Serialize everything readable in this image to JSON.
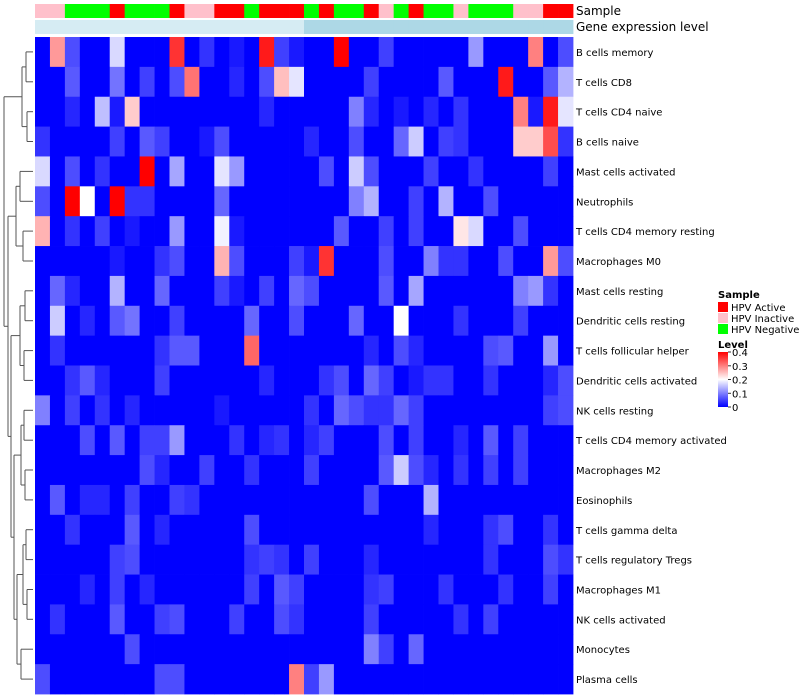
{
  "chart_data": {
    "type": "heatmap",
    "annotation_tracks": [
      "Sample",
      "Gene expression level"
    ],
    "columns": 36,
    "row_labels": [
      "B cells memory",
      "T cells CD8",
      "T cells CD4 naive",
      "B cells naive",
      "Mast cells activated",
      "Neutrophils",
      "T cells CD4 memory resting",
      "Macrophages M0",
      "Mast cells resting",
      "Dendritic cells resting",
      "T cells follicular helper",
      "Dendritic cells activated",
      "NK cells resting",
      "T cells CD4 memory activated",
      "Macrophages M2",
      "Eosinophils",
      "T cells gamma delta",
      "T cells regulatory  Tregs",
      "Macrophages M1",
      "NK cells activated",
      "Monocytes",
      "Plasma cells"
    ],
    "sample_groups": [
      "HPV Inactive",
      "HPV Inactive",
      "HPV Negative",
      "HPV Negative",
      "HPV Negative",
      "HPV Active",
      "HPV Negative",
      "HPV Negative",
      "HPV Negative",
      "HPV Active",
      "HPV Inactive",
      "HPV Inactive",
      "HPV Active",
      "HPV Active",
      "HPV Negative",
      "HPV Active",
      "HPV Active",
      "HPV Active",
      "HPV Negative",
      "HPV Active",
      "HPV Negative",
      "HPV Negative",
      "HPV Active",
      "HPV Inactive",
      "HPV Negative",
      "HPV Active",
      "HPV Negative",
      "HPV Negative",
      "HPV Inactive",
      "HPV Negative",
      "HPV Negative",
      "HPV Negative",
      "HPV Inactive",
      "HPV Inactive",
      "HPV Active",
      "HPV Active"
    ],
    "expression_track": [
      0.25,
      0.25,
      0.25,
      0.25,
      0.25,
      0.25,
      0.25,
      0.25,
      0.25,
      0.25,
      0.25,
      0.25,
      0.25,
      0.25,
      0.25,
      0.25,
      0.25,
      0.25,
      0.5,
      0.5,
      0.5,
      0.5,
      0.5,
      0.5,
      0.5,
      0.5,
      0.5,
      0.5,
      0.5,
      0.5,
      0.5,
      0.5,
      0.5,
      0.5,
      0.5,
      0.5
    ],
    "values": [
      [
        0.0,
        0.28,
        0.06,
        0.0,
        0.0,
        0.17,
        0.0,
        0.0,
        0.0,
        0.36,
        0.0,
        0.04,
        0.0,
        0.02,
        0.0,
        0.38,
        0.05,
        0.02,
        0.0,
        0.0,
        0.4,
        0.0,
        0.0,
        0.05,
        0.0,
        0.0,
        0.0,
        0.0,
        0.0,
        0.12,
        0.0,
        0.0,
        0.0,
        0.3,
        0.0,
        0.06
      ],
      [
        0.0,
        0.0,
        0.07,
        0.0,
        0.0,
        0.09,
        0.0,
        0.05,
        0.0,
        0.06,
        0.31,
        0.0,
        0.0,
        0.03,
        0.0,
        0.06,
        0.25,
        0.18,
        0.0,
        0.0,
        0.0,
        0.0,
        0.05,
        0.0,
        0.0,
        0.0,
        0.0,
        0.07,
        0.0,
        0.0,
        0.0,
        0.38,
        0.0,
        0.0,
        0.07,
        0.14
      ],
      [
        0.0,
        0.0,
        0.03,
        0.0,
        0.15,
        0.02,
        0.24,
        0.0,
        0.0,
        0.0,
        0.0,
        0.0,
        0.0,
        0.0,
        0.0,
        0.03,
        0.0,
        0.0,
        0.0,
        0.0,
        0.0,
        0.1,
        0.03,
        0.0,
        0.02,
        0.0,
        0.03,
        0.0,
        0.04,
        0.0,
        0.0,
        0.0,
        0.3,
        0.02,
        0.38,
        0.18
      ],
      [
        0.04,
        0.0,
        0.0,
        0.0,
        0.0,
        0.05,
        0.0,
        0.07,
        0.05,
        0.0,
        0.0,
        0.02,
        0.06,
        0.0,
        0.0,
        0.0,
        0.0,
        0.0,
        0.03,
        0.0,
        0.0,
        0.06,
        0.0,
        0.0,
        0.08,
        0.16,
        0.0,
        0.05,
        0.04,
        0.0,
        0.0,
        0.0,
        0.24,
        0.24,
        0.34,
        0.04
      ],
      [
        0.17,
        0.0,
        0.06,
        0.0,
        0.04,
        0.0,
        0.0,
        0.4,
        0.0,
        0.13,
        0.0,
        0.0,
        0.18,
        0.12,
        0.0,
        0.0,
        0.0,
        0.0,
        0.0,
        0.06,
        0.0,
        0.16,
        0.06,
        0.0,
        0.0,
        0.0,
        0.05,
        0.0,
        0.0,
        0.04,
        0.0,
        0.0,
        0.0,
        0.0,
        0.05,
        0.0
      ],
      [
        0.06,
        0.0,
        0.4,
        0.2,
        0.0,
        0.4,
        0.04,
        0.04,
        0.0,
        0.0,
        0.0,
        0.0,
        0.08,
        0.0,
        0.0,
        0.0,
        0.0,
        0.0,
        0.0,
        0.0,
        0.0,
        0.1,
        0.14,
        0.0,
        0.0,
        0.05,
        0.0,
        0.14,
        0.0,
        0.0,
        0.06,
        0.0,
        0.0,
        0.0,
        0.0,
        0.0
      ],
      [
        0.26,
        0.0,
        0.04,
        0.0,
        0.05,
        0.0,
        0.02,
        0.0,
        0.0,
        0.12,
        0.0,
        0.0,
        0.19,
        0.02,
        0.0,
        0.0,
        0.0,
        0.0,
        0.0,
        0.0,
        0.07,
        0.0,
        0.0,
        0.05,
        0.0,
        0.05,
        0.0,
        0.0,
        0.22,
        0.17,
        0.0,
        0.0,
        0.06,
        0.0,
        0.0,
        0.0
      ],
      [
        0.0,
        0.0,
        0.0,
        0.0,
        0.0,
        0.02,
        0.0,
        0.0,
        0.04,
        0.06,
        0.0,
        0.0,
        0.26,
        0.06,
        0.0,
        0.0,
        0.0,
        0.05,
        0.02,
        0.36,
        0.0,
        0.0,
        0.0,
        0.06,
        0.0,
        0.0,
        0.1,
        0.04,
        0.04,
        0.0,
        0.0,
        0.06,
        0.0,
        0.0,
        0.28,
        0.06
      ],
      [
        0.0,
        0.08,
        0.03,
        0.0,
        0.0,
        0.14,
        0.0,
        0.0,
        0.08,
        0.0,
        0.0,
        0.0,
        0.05,
        0.02,
        0.0,
        0.05,
        0.0,
        0.08,
        0.06,
        0.0,
        0.0,
        0.0,
        0.0,
        0.07,
        0.0,
        0.13,
        0.0,
        0.0,
        0.0,
        0.0,
        0.0,
        0.0,
        0.1,
        0.12,
        0.04,
        0.0
      ],
      [
        0.0,
        0.16,
        0.0,
        0.03,
        0.0,
        0.07,
        0.09,
        0.0,
        0.0,
        0.05,
        0.0,
        0.0,
        0.0,
        0.0,
        0.08,
        0.0,
        0.0,
        0.06,
        0.0,
        0.0,
        0.0,
        0.08,
        0.0,
        0.0,
        0.2,
        0.0,
        0.0,
        0.0,
        0.04,
        0.0,
        0.0,
        0.0,
        0.05,
        0.0,
        0.0,
        0.0
      ],
      [
        0.0,
        0.04,
        0.0,
        0.0,
        0.0,
        0.0,
        0.0,
        0.0,
        0.04,
        0.07,
        0.07,
        0.0,
        0.0,
        0.0,
        0.32,
        0.0,
        0.0,
        0.0,
        0.0,
        0.0,
        0.0,
        0.0,
        0.03,
        0.0,
        0.06,
        0.03,
        0.0,
        0.0,
        0.0,
        0.0,
        0.06,
        0.07,
        0.0,
        0.0,
        0.12,
        0.0
      ],
      [
        0.0,
        0.0,
        0.04,
        0.07,
        0.03,
        0.0,
        0.0,
        0.0,
        0.05,
        0.0,
        0.0,
        0.0,
        0.0,
        0.0,
        0.0,
        0.03,
        0.0,
        0.0,
        0.0,
        0.04,
        0.06,
        0.0,
        0.08,
        0.05,
        0.0,
        0.02,
        0.04,
        0.04,
        0.0,
        0.0,
        0.04,
        0.0,
        0.0,
        0.0,
        0.03,
        0.06
      ],
      [
        0.1,
        0.0,
        0.05,
        0.0,
        0.04,
        0.0,
        0.03,
        0.0,
        0.0,
        0.0,
        0.0,
        0.0,
        0.02,
        0.0,
        0.0,
        0.0,
        0.0,
        0.0,
        0.04,
        0.0,
        0.08,
        0.06,
        0.04,
        0.04,
        0.08,
        0.05,
        0.0,
        0.0,
        0.0,
        0.0,
        0.0,
        0.0,
        0.0,
        0.0,
        0.05,
        0.06
      ],
      [
        0.0,
        0.0,
        0.0,
        0.06,
        0.0,
        0.07,
        0.0,
        0.05,
        0.05,
        0.12,
        0.0,
        0.0,
        0.0,
        0.04,
        0.0,
        0.03,
        0.04,
        0.0,
        0.03,
        0.05,
        0.0,
        0.0,
        0.0,
        0.06,
        0.0,
        0.05,
        0.0,
        0.0,
        0.03,
        0.0,
        0.07,
        0.0,
        0.05,
        0.0,
        0.0,
        0.0
      ],
      [
        0.0,
        0.0,
        0.0,
        0.0,
        0.0,
        0.0,
        0.0,
        0.06,
        0.03,
        0.0,
        0.0,
        0.05,
        0.0,
        0.0,
        0.04,
        0.0,
        0.0,
        0.0,
        0.05,
        0.0,
        0.0,
        0.0,
        0.0,
        0.07,
        0.16,
        0.06,
        0.03,
        0.0,
        0.04,
        0.0,
        0.05,
        0.0,
        0.05,
        0.0,
        0.0,
        0.0
      ],
      [
        0.0,
        0.07,
        0.0,
        0.03,
        0.03,
        0.0,
        0.05,
        0.0,
        0.0,
        0.05,
        0.04,
        0.0,
        0.0,
        0.0,
        0.0,
        0.0,
        0.0,
        0.0,
        0.0,
        0.0,
        0.0,
        0.0,
        0.06,
        0.0,
        0.0,
        0.0,
        0.14,
        0.0,
        0.0,
        0.0,
        0.0,
        0.0,
        0.0,
        0.0,
        0.0,
        0.0
      ],
      [
        0.0,
        0.0,
        0.04,
        0.0,
        0.0,
        0.0,
        0.07,
        0.0,
        0.03,
        0.0,
        0.0,
        0.0,
        0.0,
        0.0,
        0.06,
        0.0,
        0.0,
        0.0,
        0.0,
        0.0,
        0.0,
        0.0,
        0.0,
        0.0,
        0.0,
        0.0,
        0.03,
        0.0,
        0.0,
        0.0,
        0.04,
        0.06,
        0.0,
        0.0,
        0.04,
        0.0
      ],
      [
        0.0,
        0.0,
        0.0,
        0.0,
        0.0,
        0.05,
        0.06,
        0.0,
        0.0,
        0.0,
        0.0,
        0.0,
        0.0,
        0.0,
        0.04,
        0.05,
        0.04,
        0.0,
        0.05,
        0.0,
        0.0,
        0.0,
        0.03,
        0.0,
        0.0,
        0.0,
        0.0,
        0.0,
        0.0,
        0.0,
        0.04,
        0.0,
        0.0,
        0.0,
        0.06,
        0.04
      ],
      [
        0.0,
        0.0,
        0.0,
        0.03,
        0.0,
        0.05,
        0.0,
        0.03,
        0.0,
        0.0,
        0.0,
        0.0,
        0.0,
        0.0,
        0.05,
        0.0,
        0.07,
        0.05,
        0.0,
        0.0,
        0.0,
        0.0,
        0.04,
        0.05,
        0.0,
        0.0,
        0.0,
        0.04,
        0.0,
        0.0,
        0.0,
        0.04,
        0.0,
        0.0,
        0.05,
        0.0
      ],
      [
        0.0,
        0.04,
        0.0,
        0.0,
        0.0,
        0.07,
        0.0,
        0.0,
        0.05,
        0.06,
        0.0,
        0.0,
        0.0,
        0.05,
        0.0,
        0.0,
        0.06,
        0.04,
        0.0,
        0.0,
        0.0,
        0.0,
        0.05,
        0.0,
        0.0,
        0.0,
        0.0,
        0.0,
        0.04,
        0.0,
        0.05,
        0.0,
        0.0,
        0.0,
        0.0,
        0.0
      ],
      [
        0.0,
        0.0,
        0.0,
        0.0,
        0.0,
        0.0,
        0.06,
        0.0,
        0.0,
        0.0,
        0.0,
        0.0,
        0.0,
        0.0,
        0.0,
        0.0,
        0.0,
        0.0,
        0.0,
        0.0,
        0.0,
        0.0,
        0.1,
        0.05,
        0.0,
        0.08,
        0.0,
        0.0,
        0.0,
        0.0,
        0.0,
        0.0,
        0.0,
        0.0,
        0.0,
        0.0
      ],
      [
        0.06,
        0.0,
        0.0,
        0.0,
        0.0,
        0.0,
        0.0,
        0.0,
        0.06,
        0.06,
        0.0,
        0.0,
        0.0,
        0.0,
        0.0,
        0.0,
        0.0,
        0.3,
        0.05,
        0.12,
        0.0,
        0.0,
        0.0,
        0.0,
        0.0,
        0.0,
        0.0,
        0.0,
        0.0,
        0.0,
        0.0,
        0.0,
        0.0,
        0.0,
        0.0,
        0.0
      ]
    ],
    "value_range": [
      0,
      0.4
    ],
    "legend": {
      "position": "right",
      "sample": {
        "title": "Sample",
        "entries": [
          {
            "label": "HPV Active",
            "color": "#ff0000"
          },
          {
            "label": "HPV Inactive",
            "color": "#ffc0cb"
          },
          {
            "label": "HPV Negative",
            "color": "#00ff00"
          }
        ]
      },
      "level": {
        "title": "Level",
        "ticks": [
          "0.4",
          "0.3",
          "0.2",
          "0.1",
          "0"
        ],
        "colors": [
          "#0000ff",
          "#ffffff",
          "#ff0000"
        ]
      }
    },
    "expression_colors": [
      "#ffffff",
      "#add8e6",
      "#4fb4f0"
    ],
    "dendrogram": "rows, left side",
    "grid": false
  }
}
